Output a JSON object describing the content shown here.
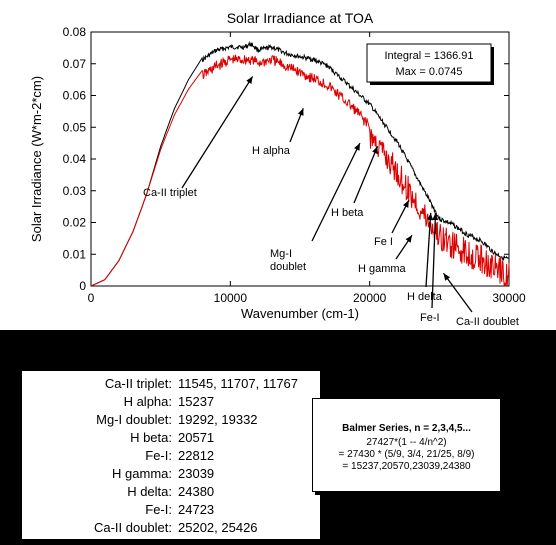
{
  "chart_data": {
    "type": "line",
    "title": "Solar Irradiance at TOA",
    "xlabel": "Wavenumber (cm-1)",
    "ylabel": "Solar Irradiance (W*m-2*cm)",
    "xlim": [
      0,
      30000
    ],
    "ylim": [
      0,
      0.08
    ],
    "xticks": [
      0,
      10000,
      20000,
      30000
    ],
    "yticks": [
      0,
      0.01,
      0.02,
      0.03,
      0.04,
      0.05,
      0.06,
      0.07,
      0.08
    ],
    "xtick_labels": [
      "0",
      "10000",
      "20000",
      "30000"
    ],
    "ytick_labels": [
      "0",
      "0.01",
      "0.02",
      "0.03",
      "0.04",
      "0.05",
      "0.06",
      "0.07",
      "0.08"
    ],
    "grid": false,
    "series": [
      {
        "color": "#000000",
        "x": [
          0,
          1000,
          2000,
          3000,
          4000,
          5000,
          6000,
          7000,
          8000,
          9000,
          10000,
          11000,
          11500,
          12000,
          13000,
          14000,
          15000,
          16000,
          17000,
          18000,
          19000,
          20000,
          21000,
          22000,
          23000,
          24000,
          25000,
          26000,
          27000,
          28000,
          29000,
          30000
        ],
        "y": [
          0,
          0.002,
          0.008,
          0.017,
          0.029,
          0.044,
          0.056,
          0.065,
          0.072,
          0.075,
          0.076,
          0.076,
          0.077,
          0.075,
          0.076,
          0.074,
          0.073,
          0.072,
          0.07,
          0.066,
          0.062,
          0.058,
          0.052,
          0.046,
          0.038,
          0.03,
          0.022,
          0.02,
          0.017,
          0.015,
          0.011,
          0.009
        ]
      },
      {
        "color": "#dd0000",
        "x": [
          0,
          1000,
          2000,
          3000,
          4000,
          5000,
          6000,
          7000,
          8000,
          9000,
          10000,
          11000,
          11500,
          12000,
          13000,
          14000,
          15000,
          16000,
          17000,
          18000,
          19000,
          20000,
          21000,
          22000,
          23000,
          24000,
          25000,
          26000,
          27000,
          28000,
          29000,
          30000
        ],
        "y": [
          0,
          0.002,
          0.008,
          0.017,
          0.029,
          0.043,
          0.054,
          0.062,
          0.068,
          0.071,
          0.073,
          0.073,
          0.073,
          0.072,
          0.073,
          0.071,
          0.069,
          0.067,
          0.065,
          0.061,
          0.057,
          0.052,
          0.046,
          0.04,
          0.033,
          0.026,
          0.02,
          0.017,
          0.015,
          0.013,
          0.01,
          0.008
        ]
      }
    ],
    "info_box": {
      "integral": "Integral = 1366.91",
      "max": "Max = 0.0745"
    },
    "annotations": [
      {
        "label": "Ca-II triplet",
        "x": 11600,
        "y": 0.066
      },
      {
        "label": "H alpha",
        "x": 15237,
        "y": 0.056
      },
      {
        "label": "H beta",
        "x": 20571,
        "y": 0.044
      },
      {
        "label": "Mg-I",
        "label2": "doublet",
        "x": 19300,
        "y": 0.045
      },
      {
        "label": "Fe I",
        "x": 22812,
        "y": 0.027
      },
      {
        "label": "H gamma",
        "x": 23039,
        "y": 0.016
      },
      {
        "label": "H delta",
        "x": 24380,
        "y": 0.023
      },
      {
        "label": "Fe-I",
        "x": 24723,
        "y": 0.023
      },
      {
        "label": "Ca-II doublet",
        "x": 25300,
        "y": 0.004
      }
    ]
  },
  "line_table": [
    {
      "label": "Ca-II triplet:",
      "value": "11545, 11707, 11767"
    },
    {
      "label": "H alpha:",
      "value": "15237"
    },
    {
      "label": "Mg-I doublet:",
      "value": "19292, 19332"
    },
    {
      "label": "H beta:",
      "value": "20571"
    },
    {
      "label": "Fe-I:",
      "value": "22812"
    },
    {
      "label": "H gamma:",
      "value": "23039"
    },
    {
      "label": "H delta:",
      "value": "24380"
    },
    {
      "label": "Fe-I:",
      "value": "24723"
    },
    {
      "label": "Ca-II doublet:",
      "value": "25202, 25426"
    }
  ],
  "balmer": {
    "title": "Balmer  Series, n = 2,3,4,5...",
    "formula1": "27427*(1 -- 4/n^2)",
    "formula2": "= 27430 * (5/9, 3/4, 21/25, 8/9)",
    "formula3": "=   15237,20570,23039,24380"
  }
}
